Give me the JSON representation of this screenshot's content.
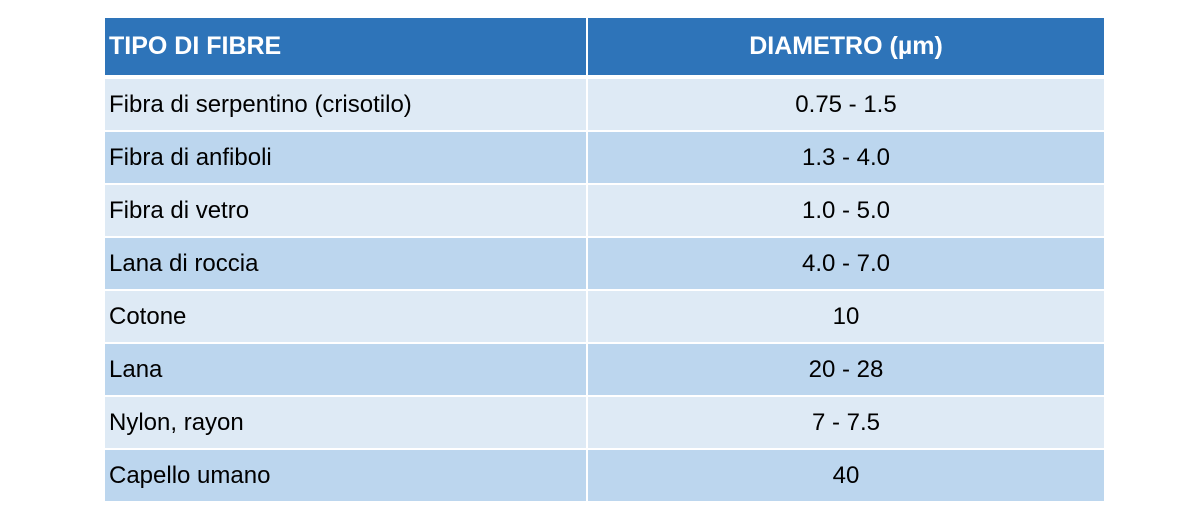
{
  "table": {
    "headers": {
      "type": "TIPO DI FIBRE",
      "diameter": "DIAMETRO (µm)"
    },
    "rows": [
      {
        "type": "Fibra di serpentino (crisotilo)",
        "diameter": "0.75 - 1.5"
      },
      {
        "type": "Fibra di anfiboli",
        "diameter": "1.3 - 4.0"
      },
      {
        "type": "Fibra di vetro",
        "diameter": "1.0 - 5.0"
      },
      {
        "type": "Lana di roccia",
        "diameter": "4.0 - 7.0"
      },
      {
        "type": "Cotone",
        "diameter": "10"
      },
      {
        "type": "Lana",
        "diameter": "20 - 28"
      },
      {
        "type": "Nylon, rayon",
        "diameter": "7 - 7.5"
      },
      {
        "type": "Capello umano",
        "diameter": "40"
      }
    ]
  }
}
